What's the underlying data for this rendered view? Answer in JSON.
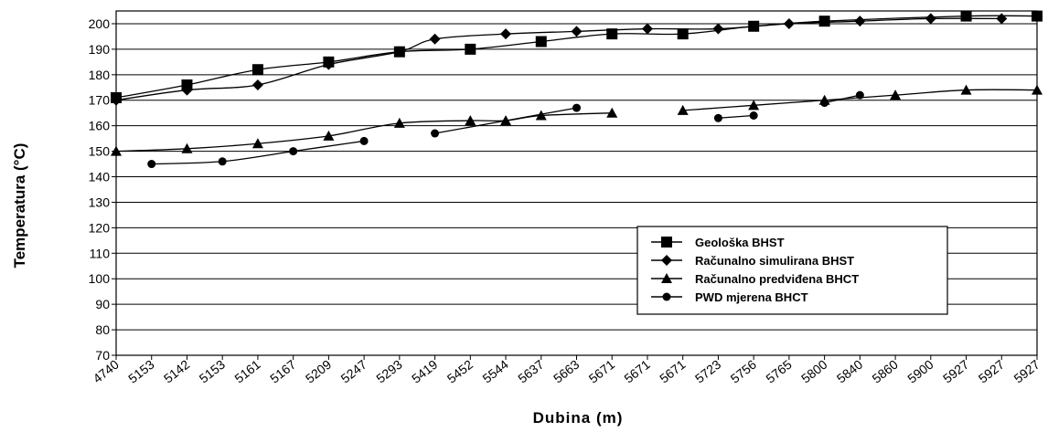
{
  "chart_data": {
    "type": "line",
    "xlabel": "Dubina  (m)",
    "ylabel": "Temperatura (°C)",
    "ylim": [
      70,
      205
    ],
    "yticks": [
      70,
      80,
      90,
      100,
      110,
      120,
      130,
      140,
      150,
      160,
      170,
      180,
      190,
      200
    ],
    "grid": "horizontal",
    "legend_position": "bottom-right",
    "categories": [
      "4740",
      "5153",
      "5142",
      "5153",
      "5161",
      "5167",
      "5209",
      "5247",
      "5293",
      "5419",
      "5452",
      "5544",
      "5637",
      "5663",
      "5671",
      "5671",
      "5671",
      "5723",
      "5756",
      "5765",
      "5800",
      "5840",
      "5860",
      "5900",
      "5927",
      "5927",
      "5927"
    ],
    "series": [
      {
        "name": "Geološka BHST",
        "marker": "square",
        "values": [
          171,
          null,
          176,
          null,
          182,
          null,
          185,
          null,
          189,
          null,
          190,
          null,
          193,
          null,
          196,
          null,
          196,
          null,
          199,
          null,
          201,
          null,
          null,
          null,
          203,
          null,
          203
        ]
      },
      {
        "name": "Računalno simulirana BHST",
        "marker": "diamond",
        "values": [
          170,
          null,
          174,
          null,
          176,
          null,
          184,
          null,
          189,
          194,
          null,
          196,
          null,
          197,
          null,
          198,
          null,
          198,
          null,
          200,
          null,
          201,
          null,
          202,
          null,
          202,
          null
        ]
      },
      {
        "name": "Računalno predviđena BHCT",
        "marker": "triangle",
        "values": [
          150,
          null,
          151,
          null,
          153,
          null,
          156,
          null,
          161,
          null,
          162,
          162,
          164,
          null,
          165,
          null,
          166,
          null,
          168,
          null,
          170,
          null,
          172,
          null,
          174,
          null,
          174
        ]
      },
      {
        "name": "PWD mjerena BHCT",
        "marker": "circle",
        "values": [
          null,
          145,
          null,
          146,
          null,
          150,
          null,
          154,
          null,
          157,
          null,
          null,
          null,
          167,
          null,
          null,
          null,
          163,
          164,
          null,
          169,
          172,
          null,
          null,
          null,
          null,
          null
        ]
      }
    ]
  }
}
